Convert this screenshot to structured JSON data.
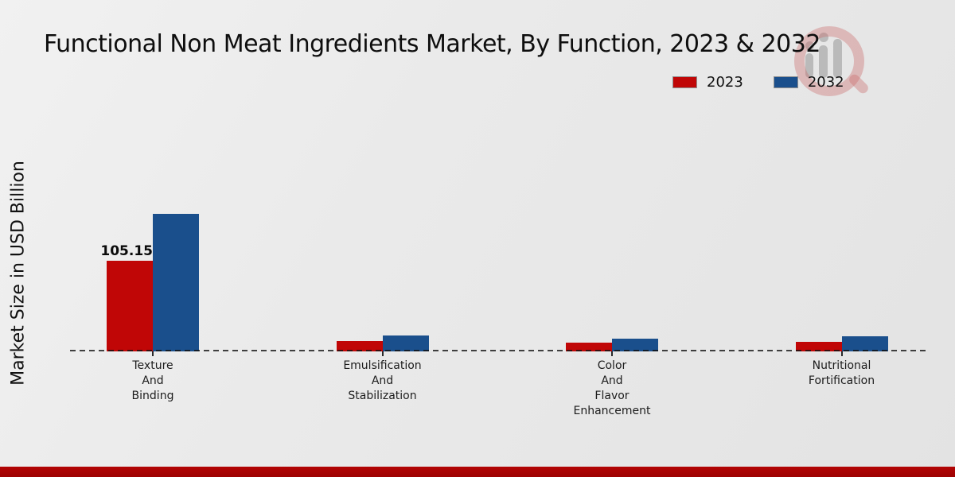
{
  "title": "Functional Non Meat Ingredients Market, By Function, 2023 & 2032",
  "y_axis_label": "Market Size in USD Billion",
  "legend": {
    "items": [
      {
        "label": "2023",
        "color": "#c00606"
      },
      {
        "label": "2032",
        "color": "#1a4f8c"
      }
    ]
  },
  "watermark_icon": "magnifier-bar-chart-logo",
  "footer_bar_color": "#b30404",
  "chart_data": {
    "type": "bar",
    "title": "Functional Non Meat Ingredients Market, By Function, 2023 & 2032",
    "xlabel": "",
    "ylabel": "Market Size in USD Billion",
    "unit": "USD Billion",
    "categories": [
      "Texture And Binding",
      "Emulsification And Stabilization",
      "Color And Flavor Enhancement",
      "Nutritional Fortification"
    ],
    "category_label_lines": [
      [
        "Texture",
        "And",
        "Binding"
      ],
      [
        "Emulsification",
        "And",
        "Stabilization"
      ],
      [
        "Color",
        "And",
        "Flavor",
        "Enhancement"
      ],
      [
        "Nutritional",
        "Fortification"
      ]
    ],
    "series": [
      {
        "name": "2023",
        "color": "#c00606",
        "values": [
          105.15,
          11.9,
          9.9,
          11.4
        ],
        "bar_labels": [
          "105.15",
          "",
          "",
          ""
        ]
      },
      {
        "name": "2032",
        "color": "#1a4f8c",
        "values": [
          158.8,
          18.4,
          15.1,
          17.8
        ],
        "bar_labels": [
          "",
          "",
          "",
          ""
        ]
      }
    ],
    "ylim": [
      0,
      170
    ],
    "grid": false,
    "yaxis_tick_labels_visible": false,
    "zero_line_style": "dashed",
    "legend_position": "top-right"
  }
}
